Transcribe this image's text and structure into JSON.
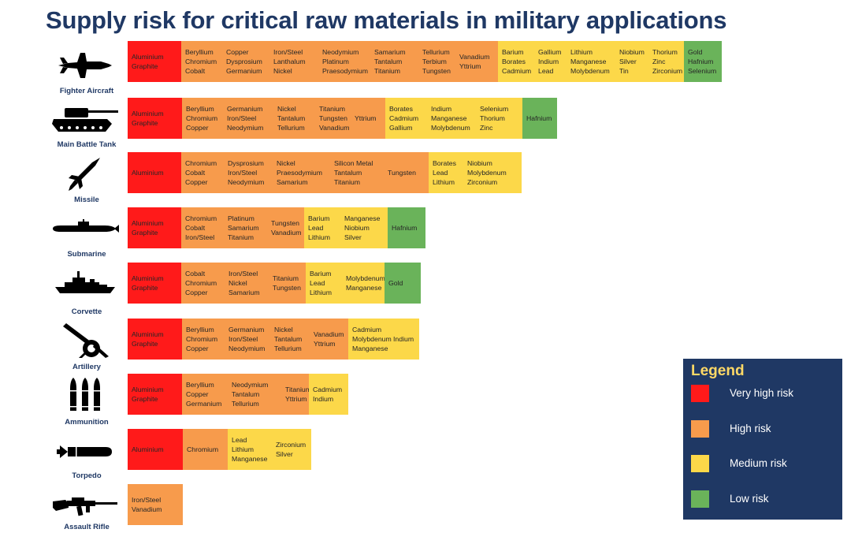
{
  "title": "Supply risk for critical raw materials in military applications",
  "chart_data": {
    "type": "table",
    "title": "Supply risk for critical raw materials in military applications",
    "risk_levels": [
      {
        "key": "very_high",
        "label": "Very high risk",
        "color": "#ff1a1a"
      },
      {
        "key": "high",
        "label": "High risk",
        "color": "#f79b4c"
      },
      {
        "key": "medium",
        "label": "Medium risk",
        "color": "#fcd849"
      },
      {
        "key": "low",
        "label": "Low risk",
        "color": "#6ab35a"
      }
    ],
    "applications": [
      {
        "name": "Fighter Aircraft",
        "icon": "fighter-aircraft-icon",
        "segments": [
          {
            "risk": "very_high",
            "columns": [
              [
                "Aluminium",
                "Graphite"
              ]
            ]
          },
          {
            "risk": "high",
            "columns": [
              [
                "Beryllium",
                "Chromium",
                "Cobalt"
              ],
              [
                "Copper",
                "Dysprosium",
                "Germanium"
              ],
              [
                "Iron/Steel",
                "Lanthalum",
                "Nickel"
              ],
              [
                "Neodymium",
                "Platinum",
                "Praesodymium"
              ],
              [
                "Samarium",
                "Tantalum",
                "Titanium"
              ],
              [
                "Tellurium",
                "Terbium",
                "Tungsten"
              ],
              [
                "Vanadium",
                "Yttrium"
              ]
            ]
          },
          {
            "risk": "medium",
            "columns": [
              [
                "Barium",
                "Borates",
                "Cadmium"
              ],
              [
                "Gallium",
                "Indium",
                "Lead"
              ],
              [
                "Lithium",
                "Manganese",
                "Molybdenum"
              ],
              [
                "Niobium",
                "Silver",
                "Tin"
              ],
              [
                "Thorium",
                "Zinc",
                "Zirconium"
              ]
            ]
          },
          {
            "risk": "low",
            "columns": [
              [
                "Gold",
                "Hafnium",
                "Selenium"
              ]
            ]
          }
        ]
      },
      {
        "name": "Main Battle Tank",
        "icon": "tank-icon",
        "segments": [
          {
            "risk": "very_high",
            "columns": [
              [
                "Aluminium",
                "Graphite"
              ]
            ]
          },
          {
            "risk": "high",
            "columns": [
              [
                "Beryllium",
                "Chromium",
                "Copper"
              ],
              [
                "Germanium",
                "Iron/Steel",
                "Neodymium"
              ],
              [
                "Nickel",
                "Tantalum",
                "Tellurium"
              ],
              [
                "Titanium",
                "Tungsten",
                "Vanadium"
              ],
              [
                "Yttrium"
              ]
            ]
          },
          {
            "risk": "medium",
            "columns": [
              [
                "Borates",
                "Cadmium",
                "Gallium"
              ],
              [
                "Indium",
                "Manganese",
                "Molybdenum"
              ],
              [
                "Selenium",
                "Thorium",
                "Zinc"
              ]
            ]
          },
          {
            "risk": "low",
            "columns": [
              [
                "Hafnium"
              ]
            ]
          }
        ]
      },
      {
        "name": "Missile",
        "icon": "missile-icon",
        "segments": [
          {
            "risk": "very_high",
            "columns": [
              [
                "Aluminium"
              ]
            ]
          },
          {
            "risk": "high",
            "columns": [
              [
                "Chromium",
                "Cobalt",
                "Copper"
              ],
              [
                "Dysprosium",
                "Iron/Steel",
                "Neodymium"
              ],
              [
                "Nickel",
                "Praesodymium",
                "Samarium"
              ],
              [
                "Silicon Metal",
                "Tantalum",
                "Titanium"
              ],
              [
                "Tungsten"
              ]
            ]
          },
          {
            "risk": "medium",
            "columns": [
              [
                "Borates",
                "Lead",
                "Lithium"
              ],
              [
                "Niobium",
                "Molybdenum",
                "Zirconium"
              ]
            ]
          }
        ]
      },
      {
        "name": "Submarine",
        "icon": "submarine-icon",
        "segments": [
          {
            "risk": "very_high",
            "columns": [
              [
                "Aluminium",
                "Graphite"
              ]
            ]
          },
          {
            "risk": "high",
            "columns": [
              [
                "Chromium",
                "Cobalt",
                "Iron/Steel"
              ],
              [
                "Platinum",
                "Samarium",
                "Titanium"
              ],
              [
                "Tungsten",
                "Vanadium"
              ]
            ]
          },
          {
            "risk": "medium",
            "columns": [
              [
                "Barium",
                "Lead",
                "Lithium"
              ],
              [
                "Manganese",
                "Niobium",
                "Silver"
              ]
            ]
          },
          {
            "risk": "low",
            "columns": [
              [
                "Hafnium"
              ]
            ]
          }
        ]
      },
      {
        "name": "Corvette",
        "icon": "corvette-icon",
        "segments": [
          {
            "risk": "very_high",
            "columns": [
              [
                "Aluminium",
                "Graphite"
              ]
            ]
          },
          {
            "risk": "high",
            "columns": [
              [
                "Cobalt",
                "Chromium",
                "Copper"
              ],
              [
                "Iron/Steel",
                "Nickel",
                "Samarium"
              ],
              [
                "Titanium",
                "Tungsten"
              ]
            ]
          },
          {
            "risk": "medium",
            "columns": [
              [
                "Barium",
                "Lead",
                "Lithium"
              ],
              [
                "Molybdenum",
                "Manganese"
              ]
            ]
          },
          {
            "risk": "low",
            "columns": [
              [
                "Gold"
              ]
            ]
          }
        ]
      },
      {
        "name": "Artillery",
        "icon": "artillery-icon",
        "segments": [
          {
            "risk": "very_high",
            "columns": [
              [
                "Aluminium",
                "Graphite"
              ]
            ]
          },
          {
            "risk": "high",
            "columns": [
              [
                "Beryllium",
                "Chromium",
                "Copper"
              ],
              [
                "Germanium",
                "Iron/Steel",
                "Neodymium"
              ],
              [
                "Nickel",
                "Tantalum",
                "Tellurium"
              ],
              [
                "Vanadium",
                "Yttrium"
              ]
            ]
          },
          {
            "risk": "medium",
            "columns": [
              [
                "Cadmium",
                "Molybdenum",
                "Manganese"
              ],
              [
                "Indium"
              ]
            ]
          }
        ]
      },
      {
        "name": "Ammunition",
        "icon": "ammunition-icon",
        "segments": [
          {
            "risk": "very_high",
            "columns": [
              [
                "Aluminium",
                "Graphite"
              ]
            ]
          },
          {
            "risk": "high",
            "columns": [
              [
                "Beryllium",
                "Copper",
                "Germanium"
              ],
              [
                "Neodymium",
                "Tantalum",
                "Tellurium"
              ],
              [
                "Titanium",
                "Yttrium"
              ]
            ]
          },
          {
            "risk": "medium",
            "columns": [
              [
                "Cadmium",
                "Indium"
              ]
            ]
          }
        ]
      },
      {
        "name": "Torpedo",
        "icon": "torpedo-icon",
        "segments": [
          {
            "risk": "very_high",
            "columns": [
              [
                "Aluminium"
              ]
            ]
          },
          {
            "risk": "high",
            "columns": [
              [
                "Chromium"
              ]
            ]
          },
          {
            "risk": "medium",
            "columns": [
              [
                "Lead",
                "Lithium",
                "Manganese"
              ],
              [
                "Zirconium",
                "Silver"
              ]
            ]
          }
        ]
      },
      {
        "name": "Assault Rifle",
        "icon": "assault-rifle-icon",
        "segments": [
          {
            "risk": "high",
            "columns": [
              [
                "Iron/Steel",
                "Vanadium"
              ]
            ]
          }
        ]
      }
    ]
  },
  "legend": {
    "title": "Legend",
    "items": [
      {
        "label": "Very high risk",
        "color": "#ff1a1a"
      },
      {
        "label": "High risk",
        "color": "#f79b4c"
      },
      {
        "label": "Medium risk",
        "color": "#fcd849"
      },
      {
        "label": "Low risk",
        "color": "#6ab35a"
      }
    ]
  }
}
